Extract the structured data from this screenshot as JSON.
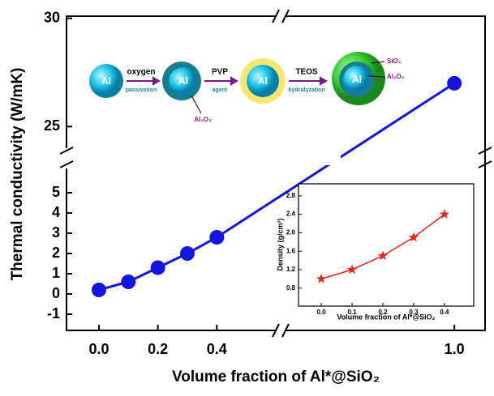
{
  "chart_data": [
    {
      "type": "line",
      "xlabel": "Volume fraction of Al*@SiO₂",
      "ylabel": "Thermal conductivity (W/mK)",
      "x": [
        0.0,
        0.1,
        0.2,
        0.3,
        0.4,
        1.0
      ],
      "values": [
        0.2,
        0.6,
        1.3,
        2.0,
        2.8,
        27
      ],
      "color": "#1414e0",
      "xlim_segments": [
        [
          -0.11,
          0.6
        ],
        [
          0.45,
          1.1
        ]
      ],
      "ylim_segments": [
        [
          -1.8,
          6.2
        ],
        [
          24,
          30.1
        ]
      ],
      "xticks": [
        {
          "value": 0,
          "label": "0.0"
        },
        0.2,
        0.4,
        {
          "value": 1,
          "label": "1.0"
        }
      ],
      "yticks": [
        -1,
        0,
        1,
        2,
        3,
        4,
        5,
        25,
        30
      ]
    },
    {
      "type": "line",
      "xlabel": "Volume fraction of Al*@SiO₂",
      "ylabel": "Density  (g/cm³)",
      "x": [
        0.0,
        0.1,
        0.2,
        0.3,
        0.4
      ],
      "values": [
        1.0,
        1.2,
        1.5,
        1.9,
        2.4
      ],
      "color": "#e8221a",
      "xlim": [
        -0.074,
        0.495
      ],
      "ylim": [
        0.41,
        3.06
      ],
      "xticks": [
        {
          "value": 0,
          "label": "0.0"
        },
        0.1,
        0.2,
        0.3,
        0.4
      ],
      "yticks": [
        0.8,
        1.2,
        1.6,
        {
          "value": 2,
          "label": "2.0"
        },
        2.4,
        2.8
      ]
    }
  ],
  "schematic": {
    "core": [
      "Al",
      "Al",
      "Al",
      "Al"
    ],
    "steps": [
      [
        "oxygen",
        "passivation"
      ],
      [
        "PVP",
        "agent"
      ],
      [
        "TEOS",
        "hydrolyzation"
      ]
    ],
    "shell_labels": [
      "Al₂O₃",
      "SiO₂",
      "Al₂O₃"
    ]
  }
}
